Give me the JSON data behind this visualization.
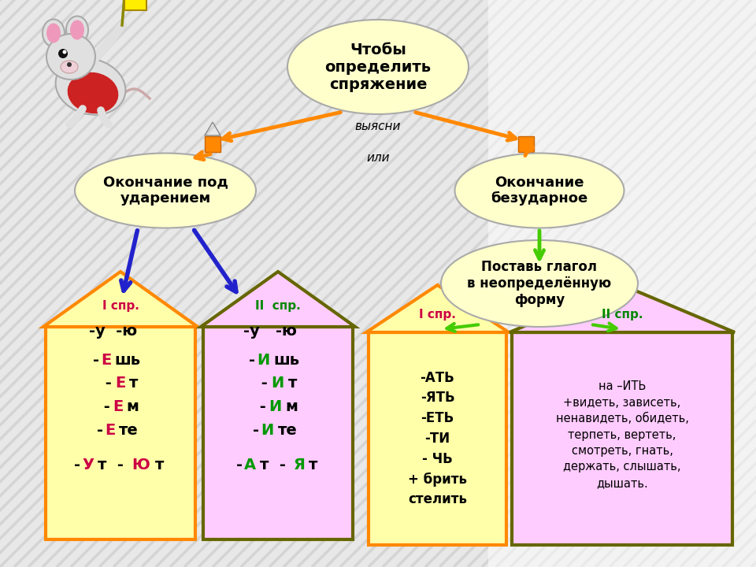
{
  "bg_light": "#e8e8e8",
  "bg_stripe1": "#d8d8d8",
  "bg_stripe2": "#f0f0f0",
  "title_text": "Чтобы\nопределить\nспряжение",
  "title_ellipse_color": "#ffffcc",
  "left_ellipse_text": "Окончание под\nударением",
  "right_ellipse_text": "Окончание\nбезударное",
  "ellipse_color": "#ffffcc",
  "middle_text1": "выясни",
  "middle_text2": "или",
  "putverb_text": "Поставь глагол\nв неопределённую\nформу",
  "putverb_bg": "#ffffcc",
  "house1_bg": "#ffffaa",
  "house1_border": "#ff8800",
  "house1_label": "I спр.",
  "house1_label_color": "#cc0044",
  "house2_bg": "#ffccff",
  "house2_border": "#666600",
  "house2_label": "II  спр.",
  "house2_label_color": "#008800",
  "house3_bg": "#ffffaa",
  "house3_border": "#ff8800",
  "house3_label": "I спр.",
  "house3_label_color": "#cc0044",
  "house4_bg": "#ffccff",
  "house4_border": "#666600",
  "house4_label": "II спр.",
  "house4_label_color": "#008800",
  "orange_sq": "#ff8800",
  "arrow_orange": "#ff8800",
  "arrow_blue": "#2222cc",
  "arrow_green": "#44cc00",
  "red_letter": "#cc0044",
  "green_letter": "#009900"
}
